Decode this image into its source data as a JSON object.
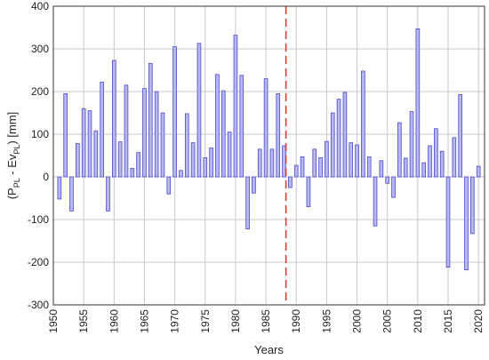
{
  "chart_data": {
    "type": "bar",
    "xlabel": "Years",
    "ylabel_main": "(P",
    "ylabel_sub1": "PL",
    "ylabel_mid": " - Ev",
    "ylabel_sub2": "PL",
    "ylabel_tail": ")  [mm]",
    "xlim": [
      1950,
      2021
    ],
    "ylim": [
      -300,
      400
    ],
    "x_ticks": [
      1950,
      1955,
      1960,
      1965,
      1970,
      1975,
      1980,
      1985,
      1990,
      1995,
      2000,
      2005,
      2010,
      2015,
      2020
    ],
    "y_ticks": [
      -300,
      -200,
      -100,
      0,
      100,
      200,
      300,
      400
    ],
    "grid": true,
    "reference_line_x": 1988.3,
    "colors": {
      "bar_fill": "#b8b8ef",
      "bar_edge": "#4a4acb",
      "reference_line": "#e0312f"
    },
    "x": [
      1951,
      1952,
      1953,
      1954,
      1955,
      1956,
      1957,
      1958,
      1959,
      1960,
      1961,
      1962,
      1963,
      1964,
      1965,
      1966,
      1967,
      1968,
      1969,
      1970,
      1971,
      1972,
      1973,
      1974,
      1975,
      1976,
      1977,
      1978,
      1979,
      1980,
      1981,
      1982,
      1983,
      1984,
      1985,
      1986,
      1987,
      1988,
      1989,
      1990,
      1991,
      1992,
      1993,
      1994,
      1995,
      1996,
      1997,
      1998,
      1999,
      2000,
      2001,
      2002,
      2003,
      2004,
      2005,
      2006,
      2007,
      2008,
      2009,
      2010,
      2011,
      2012,
      2013,
      2014,
      2015,
      2016,
      2017,
      2018,
      2019,
      2020
    ],
    "values": [
      -52,
      195,
      -80,
      78,
      160,
      155,
      108,
      222,
      -80,
      273,
      82,
      215,
      20,
      57,
      207,
      266,
      200,
      150,
      -40,
      305,
      15,
      148,
      80,
      313,
      45,
      68,
      240,
      202,
      105,
      332,
      238,
      -122,
      -38,
      65,
      230,
      65,
      195,
      73,
      -25,
      27,
      47,
      -70,
      65,
      45,
      83,
      150,
      182,
      198,
      80,
      75,
      248,
      47,
      -115,
      38,
      -15,
      -48,
      127,
      44,
      153,
      347,
      33,
      73,
      113,
      60,
      -212,
      92,
      193,
      -218,
      -133,
      25
    ]
  }
}
